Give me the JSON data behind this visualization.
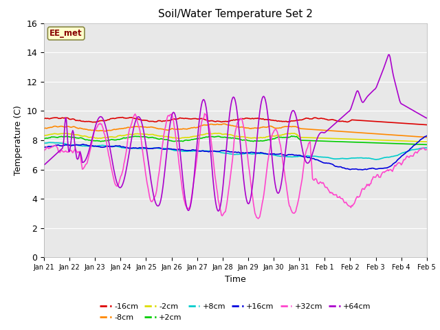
{
  "title": "Soil/Water Temperature Set 2",
  "xlabel": "Time",
  "ylabel": "Temperature (C)",
  "ylim": [
    0,
    16
  ],
  "annotation": "EE_met",
  "bg_color": "#e8e8e8",
  "series_colors": {
    "-16cm": "#dd0000",
    "-8cm": "#ff8800",
    "-2cm": "#dddd00",
    "+2cm": "#00cc00",
    "+8cm": "#00cccc",
    "+16cm": "#0000dd",
    "+32cm": "#ff44cc",
    "+64cm": "#aa00cc"
  },
  "tick_labels": [
    "Jan 21",
    "Jan 22",
    "Jan 23",
    "Jan 24",
    "Jan 25",
    "Jan 26",
    "Jan 27",
    "Jan 28",
    "Jan 29",
    "Jan 30",
    "Jan 31",
    "Feb 1",
    "Feb 2",
    "Feb 3",
    "Feb 4",
    "Feb 5"
  ],
  "legend": [
    [
      "-16cm",
      "#dd0000"
    ],
    [
      "-8cm",
      "#ff8800"
    ],
    [
      "-2cm",
      "#dddd00"
    ],
    [
      "+2cm",
      "#00cc00"
    ],
    [
      "+8cm",
      "#00cccc"
    ],
    [
      "+16cm",
      "#0000dd"
    ],
    [
      "+32cm",
      "#ff44cc"
    ],
    [
      "+64cm",
      "#aa00cc"
    ]
  ]
}
